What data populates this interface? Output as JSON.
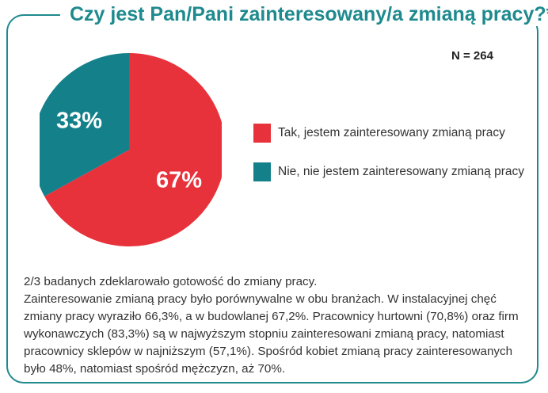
{
  "title": "Czy jest Pan/Pani zainteresowany/a zmianą pracy?*",
  "sample_size": "N = 264",
  "colors": {
    "frame": "#1f8a8e",
    "yes": "#e8323b",
    "no": "#13808a"
  },
  "chart_data": {
    "type": "pie",
    "title": "Czy jest Pan/Pani zainteresowany/a zmianą pracy?*",
    "slices": [
      {
        "label": "Tak, jestem zainteresowany zmianą pracy",
        "value": 67,
        "display": "67%",
        "color": "#e8323b"
      },
      {
        "label": "Nie, nie jestem zainteresowany zmianą pracy",
        "value": 33,
        "display": "33%",
        "color": "#13808a"
      }
    ],
    "legend_position": "right"
  },
  "description": {
    "line1": "2/3 badanych zdeklarowało gotowość do zmiany pracy.",
    "line2": "Zainteresowanie zmianą pracy było porównywalne w obu branżach. W instalacyjnej chęć zmiany pracy wyraziło 66,3%, a w budowlanej 67,2%. Pracownicy hurtowni (70,8%) oraz firm wykonawczych (83,3%) są w najwyższym stopniu zainteresowani zmianą pracy, natomiast pracownicy sklepów w najniższym (57,1%). Spośród kobiet zmianą pracy zainteresowanych było 48%, natomiast spośród mężczyzn, aż 70%."
  }
}
